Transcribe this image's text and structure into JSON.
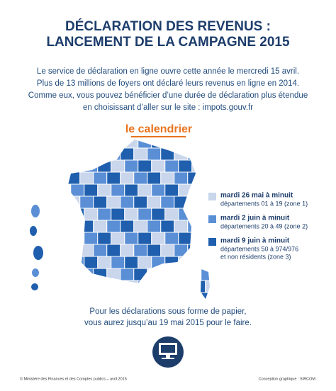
{
  "header": {
    "title_lines": [
      "DÉCLARATION DES REVENUS :",
      "LANCEMENT DE LA CAMPAGNE 2015"
    ]
  },
  "intro": {
    "lines": [
      "Le service de déclaration en ligne ouvre cette année le mercredi 15 avril.",
      "Plus de 13 millions de foyers ont déclaré leurs revenus en ligne en 2014.",
      "Comme eux, vous pouvez bénéficier d’une durée de déclaration plus étendue",
      "en choisissant d’aller sur le site : impots.gouv.fr"
    ]
  },
  "calendar": {
    "heading": "le calendrier",
    "legend": [
      {
        "color": "#c9d6ec",
        "date": "mardi 26 mai à minuit",
        "details": [
          "départements 01 à 19 (zone 1)"
        ]
      },
      {
        "color": "#5a8fd6",
        "date": "mardi 2 juin à minuit",
        "details": [
          "départements 20 à 49 (zone 2)"
        ]
      },
      {
        "color": "#1f5fae",
        "date": "mardi 9 juin à minuit",
        "details": [
          "départements 50 à 974/976",
          "et non résidents (zone 3)"
        ]
      }
    ]
  },
  "paper": {
    "lines": [
      "Pour les déclarations sous forme de papier,",
      "vous aurez jusqu’au 19 mai 2015 pour le faire."
    ]
  },
  "footer": {
    "left": "© Ministère des Finances et des Comptes publics – avril 2015",
    "right": "Conception graphique : SIRCOM"
  }
}
